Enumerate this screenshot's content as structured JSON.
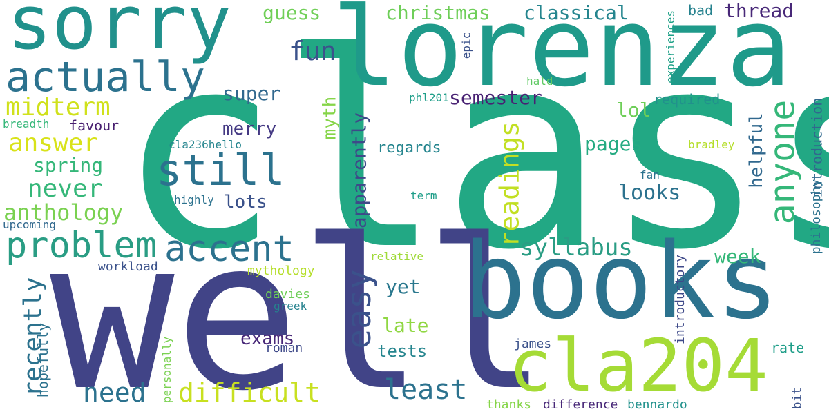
{
  "words": [
    {
      "text": "class",
      "color": "#22a884"
    },
    {
      "text": "well",
      "color": "#414487"
    },
    {
      "text": "lorenza",
      "color": "#1f9a8a"
    },
    {
      "text": "books",
      "color": "#2c728e"
    },
    {
      "text": "sorry",
      "color": "#21918c"
    },
    {
      "text": "cla204",
      "color": "#a5db36"
    },
    {
      "text": "actually",
      "color": "#2c728e"
    },
    {
      "text": "still",
      "color": "#2c728e"
    },
    {
      "text": "anyone",
      "color": "#35b779"
    },
    {
      "text": "accent",
      "color": "#2c728e"
    },
    {
      "text": "problem",
      "color": "#2a9d84"
    },
    {
      "text": "easy",
      "color": "#3b528b"
    },
    {
      "text": "difficult",
      "color": "#c8e020"
    },
    {
      "text": "midterm",
      "color": "#d0e11c"
    },
    {
      "text": "answer",
      "color": "#d8e219"
    },
    {
      "text": "readings",
      "color": "#c2df23"
    },
    {
      "text": "syllabus",
      "color": "#2a9d84"
    },
    {
      "text": "least",
      "color": "#2c728e"
    },
    {
      "text": "fun",
      "color": "#3b528b"
    },
    {
      "text": "need",
      "color": "#2c728e"
    },
    {
      "text": "never",
      "color": "#35b779"
    },
    {
      "text": "anthology",
      "color": "#7ad151"
    },
    {
      "text": "recently",
      "color": "#2c728e"
    },
    {
      "text": "apparently",
      "color": "#3e4989"
    },
    {
      "text": "spring",
      "color": "#35b779"
    },
    {
      "text": "christmas",
      "color": "#6ece58"
    },
    {
      "text": "classical",
      "color": "#25858e"
    },
    {
      "text": "guess",
      "color": "#70cf57"
    },
    {
      "text": "thread",
      "color": "#482878"
    },
    {
      "text": "super",
      "color": "#31688e"
    },
    {
      "text": "semester",
      "color": "#482173"
    },
    {
      "text": "merry",
      "color": "#443983"
    },
    {
      "text": "myth",
      "color": "#86d549"
    },
    {
      "text": "lots",
      "color": "#3b528b"
    },
    {
      "text": "pages",
      "color": "#25ab82"
    },
    {
      "text": "looks",
      "color": "#2c728e"
    },
    {
      "text": "lol",
      "color": "#6ece58"
    },
    {
      "text": "helpful",
      "color": "#31688e"
    },
    {
      "text": "exams",
      "color": "#482878"
    },
    {
      "text": "yet",
      "color": "#2a788e"
    },
    {
      "text": "late",
      "color": "#90d743"
    },
    {
      "text": "tests",
      "color": "#25858e"
    },
    {
      "text": "week",
      "color": "#35b779"
    },
    {
      "text": "regards",
      "color": "#25858e"
    },
    {
      "text": "required",
      "color": "#21918c"
    },
    {
      "text": "favour",
      "color": "#481f70"
    },
    {
      "text": "hopefully",
      "color": "#2c728e"
    },
    {
      "text": "introduction",
      "color": "#31688e"
    },
    {
      "text": "philosophy",
      "color": "#2c728e"
    },
    {
      "text": "introductory",
      "color": "#3e4989"
    },
    {
      "text": "experiences",
      "color": "#1fa188"
    },
    {
      "text": "personally",
      "color": "#7ad151"
    },
    {
      "text": "bad",
      "color": "#26828e"
    },
    {
      "text": "epic",
      "color": "#3b528b"
    },
    {
      "text": "hald",
      "color": "#5ec962"
    },
    {
      "text": "phl201",
      "color": "#1f9e89"
    },
    {
      "text": "breadth",
      "color": "#35b779"
    },
    {
      "text": "cla236hello",
      "color": "#25858e"
    },
    {
      "text": "upcoming",
      "color": "#31688e"
    },
    {
      "text": "highly",
      "color": "#2c728e"
    },
    {
      "text": "term",
      "color": "#1f9e89"
    },
    {
      "text": "fan",
      "color": "#2c728e"
    },
    {
      "text": "bradley",
      "color": "#b5de2b"
    },
    {
      "text": "workload",
      "color": "#3b528b"
    },
    {
      "text": "mythology",
      "color": "#b5de2b"
    },
    {
      "text": "relative",
      "color": "#a0da39"
    },
    {
      "text": "davies",
      "color": "#6ece58"
    },
    {
      "text": "greek",
      "color": "#26828e"
    },
    {
      "text": "roman",
      "color": "#3e4989"
    },
    {
      "text": "james",
      "color": "#3b528b"
    },
    {
      "text": "rate",
      "color": "#1f9e89"
    },
    {
      "text": "bit",
      "color": "#3b528b"
    },
    {
      "text": "thanks",
      "color": "#86d549"
    },
    {
      "text": "difference",
      "color": "#482878"
    },
    {
      "text": "bennardo",
      "color": "#21918c"
    }
  ]
}
